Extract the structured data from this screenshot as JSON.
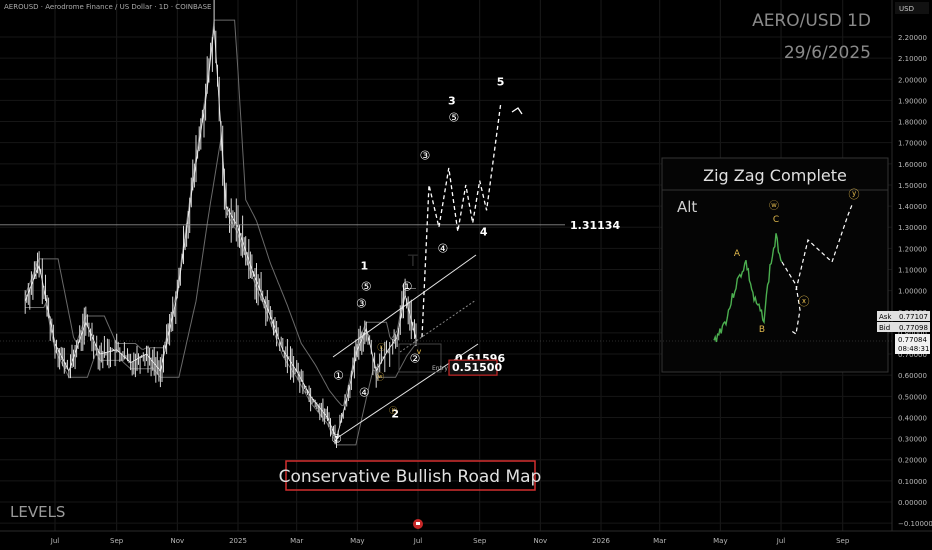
{
  "header": {
    "symbol_line": "AEROUSD · Aerodrome Finance / US Dollar · 1D · COINBASE",
    "watermark_title": "AERO/USD 1D",
    "watermark_date": "29/6/2025",
    "currency": "USD",
    "levels_label": "LEVELS"
  },
  "chart_data": {
    "type": "line",
    "title": "Conservative Bullish Road Map",
    "y_axis": {
      "min": -0.1,
      "max": 2.3,
      "ticks": [
        2.2,
        2.1,
        2.0,
        1.9,
        1.8,
        1.7,
        1.6,
        1.5,
        1.4,
        1.3,
        1.2,
        1.1,
        1.0,
        0.9,
        0.8,
        0.7,
        0.6,
        0.5,
        0.4,
        0.3,
        0.2,
        0.1,
        0.0,
        -0.1
      ],
      "tick_labels": [
        "2.20000",
        "2.10000",
        "2.00000",
        "1.90000",
        "1.80000",
        "1.70000",
        "1.60000",
        "1.50000",
        "1.40000",
        "1.30000",
        "1.20000",
        "1.10000",
        "1.00000",
        "0.90000",
        "0.80000",
        "0.70000",
        "0.60000",
        "0.50000",
        "0.40000",
        "0.30000",
        "0.20000",
        "0.10000",
        "0.00000",
        "−0.10000"
      ]
    },
    "x_axis": {
      "tick_labels": [
        "Jul",
        "Sep",
        "Nov",
        "2025",
        "Mar",
        "May",
        "Jul",
        "Sep",
        "Nov",
        "2026",
        "Mar",
        "May",
        "Jul",
        "Sep"
      ]
    },
    "price": {
      "start": 0.95,
      "points": [
        [
          "2024-06-01",
          0.95
        ],
        [
          "2024-06-15",
          1.12
        ],
        [
          "2024-07-01",
          0.75
        ],
        [
          "2024-07-15",
          0.62
        ],
        [
          "2024-08-01",
          0.85
        ],
        [
          "2024-08-15",
          0.7
        ],
        [
          "2024-09-01",
          0.72
        ],
        [
          "2024-09-15",
          0.66
        ],
        [
          "2024-10-01",
          0.7
        ],
        [
          "2024-10-15",
          0.62
        ],
        [
          "2024-11-01",
          0.98
        ],
        [
          "2024-11-15",
          1.45
        ],
        [
          "2024-12-01",
          1.95
        ],
        [
          "2024-12-08",
          2.25
        ],
        [
          "2024-12-20",
          1.4
        ],
        [
          "2025-01-01",
          1.3
        ],
        [
          "2025-01-15",
          1.1
        ],
        [
          "2025-02-01",
          0.9
        ],
        [
          "2025-02-15",
          0.72
        ],
        [
          "2025-03-01",
          0.62
        ],
        [
          "2025-03-15",
          0.5
        ],
        [
          "2025-04-01",
          0.4
        ],
        [
          "2025-04-10",
          0.3
        ],
        [
          "2025-04-22",
          0.52
        ],
        [
          "2025-05-01",
          0.72
        ],
        [
          "2025-05-10",
          0.82
        ],
        [
          "2025-05-20",
          0.62
        ],
        [
          "2025-06-01",
          0.72
        ],
        [
          "2025-06-10",
          0.78
        ],
        [
          "2025-06-18",
          0.98
        ],
        [
          "2025-06-29",
          0.77
        ]
      ]
    },
    "levels": [
      {
        "name": "resistance",
        "value": 1.31134,
        "label": "1.31134"
      },
      {
        "name": "support",
        "value": 0.61596,
        "label": "0.61596"
      },
      {
        "name": "entry",
        "value": 0.515,
        "label": "0.51500",
        "tag": "Entry"
      }
    ],
    "projection": [
      [
        "2025-07-05",
        0.78
      ],
      [
        "2025-07-12",
        1.5
      ],
      [
        "2025-07-22",
        1.3
      ],
      [
        "2025-08-01",
        1.58
      ],
      [
        "2025-08-10",
        1.28
      ],
      [
        "2025-08-18",
        1.5
      ],
      [
        "2025-08-25",
        1.32
      ],
      [
        "2025-09-01",
        1.52
      ],
      [
        "2025-09-08",
        1.38
      ],
      [
        "2025-09-22",
        1.88
      ]
    ],
    "wave_labels": [
      {
        "text": "1",
        "x": "2025-05-08",
        "y": 1.1
      },
      {
        "text": "2",
        "x": "2025-06-08",
        "y": 0.4
      },
      {
        "text": "3",
        "x": "2025-08-04",
        "y": 1.88
      },
      {
        "text": "4",
        "x": "2025-09-05",
        "y": 1.26
      },
      {
        "text": "5",
        "x": "2025-09-22",
        "y": 1.97
      }
    ],
    "sub_wave_labels": [
      {
        "text": "②",
        "x": "2025-04-10",
        "y": 0.28
      },
      {
        "text": "①",
        "x": "2025-04-12",
        "y": 0.58
      },
      {
        "text": "③",
        "x": "2025-05-05",
        "y": 0.92
      },
      {
        "text": "④",
        "x": "2025-05-08",
        "y": 0.5
      },
      {
        "text": "⑤",
        "x": "2025-05-10",
        "y": 1.0
      },
      {
        "text": "①",
        "x": "2025-06-20",
        "y": 1.0
      },
      {
        "text": "②",
        "x": "2025-06-28",
        "y": 0.66
      },
      {
        "text": "③",
        "x": "2025-07-08",
        "y": 1.62
      },
      {
        "text": "④",
        "x": "2025-07-26",
        "y": 1.18
      },
      {
        "text": "⑤",
        "x": "2025-08-06",
        "y": 1.8
      }
    ],
    "tiny_labels": [
      {
        "text": "ⓦ",
        "x": "2025-05-24",
        "y": 0.58
      },
      {
        "text": "ⓧ",
        "x": "2025-05-25",
        "y": 0.72
      },
      {
        "text": "ⓨ",
        "x": "2025-06-06",
        "y": 0.42
      },
      {
        "text": "v",
        "x": "2025-07-02",
        "y": 0.7
      }
    ],
    "price_tags": {
      "ask_label": "Ask",
      "ask": "0.77107",
      "bid_label": "Bid",
      "bid": "0.77098",
      "last": "0.77084",
      "countdown": "08:48:31"
    }
  },
  "inset": {
    "title": "Zig Zag Complete",
    "alt_label": "Alt",
    "labels": {
      "w": "ⓦ",
      "c": "C",
      "a": "A",
      "b": "B",
      "x": "ⓧ",
      "y": "ⓨ"
    }
  }
}
